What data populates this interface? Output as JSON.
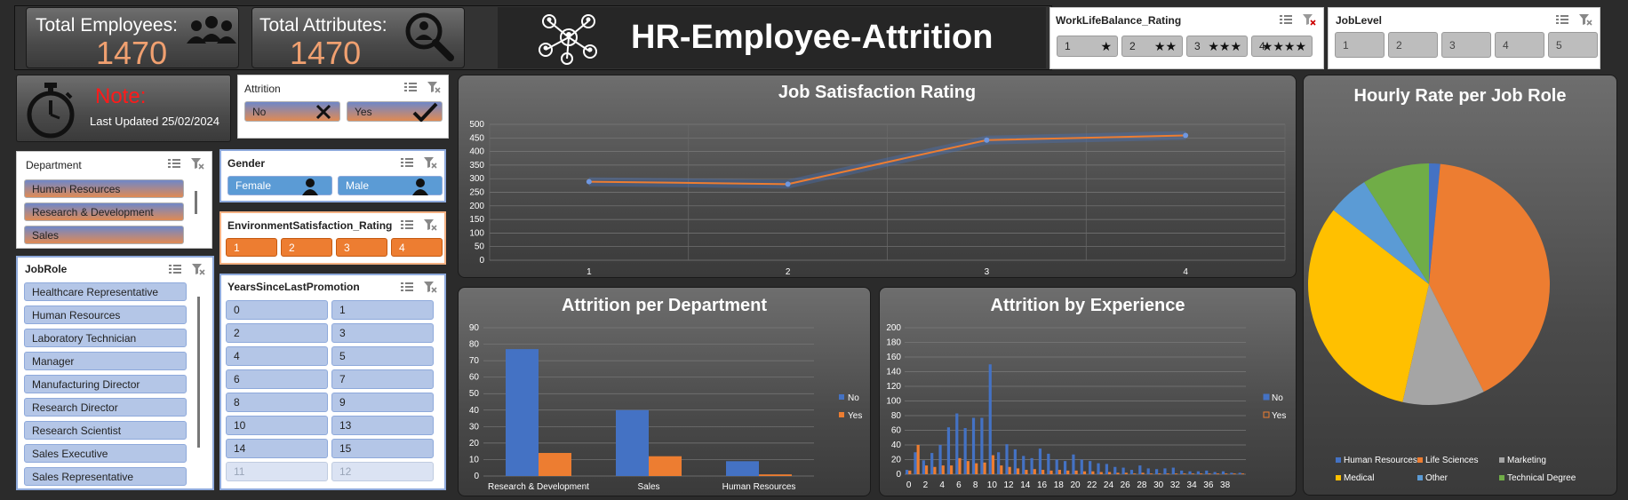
{
  "kpis": {
    "total_employees": {
      "label": "Total Employees:",
      "value": "1470",
      "icon": "people-group-icon"
    },
    "total_attributes": {
      "label": "Total Attributes:",
      "value": "1470",
      "icon": "search-people-icon"
    }
  },
  "header": {
    "title": "HR-Employee-Attrition",
    "icon": "network-people-icon"
  },
  "note": {
    "title": "Note:",
    "updated": "Last Updated 25/02/2024",
    "icon": "stopwatch-icon"
  },
  "slicers": {
    "worklifebalance": {
      "title": "WorkLifeBalance_Rating",
      "items": [
        {
          "label": "1",
          "stars": "★"
        },
        {
          "label": "2",
          "stars": "★★"
        },
        {
          "label": "3",
          "stars": "★★★"
        },
        {
          "label": "4",
          "stars": "★★★★"
        }
      ]
    },
    "joblevel": {
      "title": "JobLevel",
      "items": [
        "1",
        "2",
        "3",
        "4",
        "5"
      ]
    },
    "attrition": {
      "title": "Attrition",
      "items": [
        "No",
        "Yes"
      ]
    },
    "department": {
      "title": "Department",
      "items": [
        "Human Resources",
        "Research & Development",
        "Sales"
      ]
    },
    "gender": {
      "title": "Gender",
      "items": [
        "Female",
        "Male"
      ]
    },
    "environment": {
      "title": "EnvironmentSatisfaction_Rating",
      "items": [
        "1",
        "2",
        "3",
        "4"
      ]
    },
    "jobrole": {
      "title": "JobRole",
      "items": [
        "Healthcare Representative",
        "Human Resources",
        "Laboratory Technician",
        "Manager",
        "Manufacturing Director",
        "Research Director",
        "Research Scientist",
        "Sales Executive",
        "Sales Representative"
      ]
    },
    "promotion": {
      "title": "YearsSinceLastPromotion",
      "items": [
        "0",
        "1",
        "2",
        "3",
        "4",
        "5",
        "6",
        "7",
        "8",
        "9",
        "10",
        "13",
        "14",
        "15",
        "11",
        "12"
      ]
    }
  },
  "colors": {
    "no": "#4472c4",
    "yes": "#ed7d31",
    "line": "#ed7d31",
    "point": "#6f97e0"
  },
  "chart_data": [
    {
      "id": "job_satisfaction",
      "type": "line",
      "title": "Job Satisfaction Rating",
      "categories": [
        "1",
        "2",
        "3",
        "4"
      ],
      "values": [
        289,
        280,
        442,
        459
      ],
      "ylim": [
        0,
        500
      ],
      "yticks": [
        "0",
        "50",
        "100",
        "150",
        "200",
        "250",
        "300",
        "350",
        "400",
        "450",
        "500"
      ],
      "grid": true
    },
    {
      "id": "attrition_department",
      "type": "bar",
      "title": "Attrition per Department",
      "categories": [
        "Research & Development",
        "Sales",
        "Human Resources"
      ],
      "series": [
        {
          "name": "No",
          "values": [
            77,
            40,
            9
          ]
        },
        {
          "name": "Yes",
          "values": [
            14,
            12,
            1
          ]
        }
      ],
      "ylim": [
        0,
        90
      ],
      "yticks": [
        "0",
        "10",
        "20",
        "30",
        "40",
        "50",
        "60",
        "70",
        "80",
        "90"
      ],
      "legend": "right"
    },
    {
      "id": "attrition_experience",
      "type": "bar",
      "title": "Attrition  by Experience",
      "categories": [
        "0",
        "1",
        "2",
        "3",
        "4",
        "5",
        "6",
        "7",
        "8",
        "9",
        "10",
        "11",
        "12",
        "13",
        "14",
        "15",
        "16",
        "17",
        "18",
        "19",
        "20",
        "21",
        "22",
        "23",
        "24",
        "25",
        "26",
        "27",
        "28",
        "29",
        "30",
        "31",
        "32",
        "33",
        "34",
        "35",
        "36",
        "37",
        "38",
        "39",
        "40"
      ],
      "xticks": [
        "0",
        "2",
        "4",
        "6",
        "8",
        "10",
        "12",
        "14",
        "16",
        "18",
        "20",
        "22",
        "24",
        "26",
        "28",
        "30",
        "32",
        "34",
        "36",
        "38"
      ],
      "series": [
        {
          "name": "No",
          "values": [
            6,
            30,
            19,
            29,
            40,
            64,
            83,
            63,
            77,
            77,
            150,
            30,
            41,
            34,
            25,
            22,
            35,
            28,
            20,
            18,
            27,
            20,
            18,
            15,
            14,
            10,
            9,
            6,
            12,
            8,
            7,
            8,
            9,
            5,
            4,
            4,
            5,
            3,
            4,
            2,
            2
          ]
        },
        {
          "name": "Yes",
          "values": [
            5,
            40,
            12,
            10,
            12,
            12,
            22,
            18,
            15,
            16,
            26,
            12,
            10,
            8,
            6,
            7,
            6,
            5,
            6,
            5,
            5,
            4,
            4,
            3,
            3,
            2,
            2,
            1,
            2,
            1,
            1,
            1,
            1,
            1,
            1,
            1,
            1,
            1,
            1,
            1,
            1
          ]
        }
      ],
      "ylim": [
        0,
        200
      ],
      "yticks": [
        "0",
        "20",
        "40",
        "60",
        "80",
        "100",
        "120",
        "140",
        "160",
        "180",
        "200"
      ],
      "legend": "right"
    },
    {
      "id": "hourly_rate_jobrole",
      "type": "pie",
      "title": "Hourly Rate per Job Role",
      "slices": [
        {
          "name": "Human Resources",
          "value": 1.5,
          "color": "#4472c4"
        },
        {
          "name": "Life Sciences",
          "value": 41,
          "color": "#ed7d31"
        },
        {
          "name": "Marketing",
          "value": 11,
          "color": "#a5a5a5"
        },
        {
          "name": "Medical",
          "value": 32,
          "color": "#ffc000"
        },
        {
          "name": "Other",
          "value": 5.5,
          "color": "#5b9bd5"
        },
        {
          "name": "Technical Degree",
          "value": 9,
          "color": "#70ad47"
        }
      ],
      "legend": "bottom"
    }
  ]
}
